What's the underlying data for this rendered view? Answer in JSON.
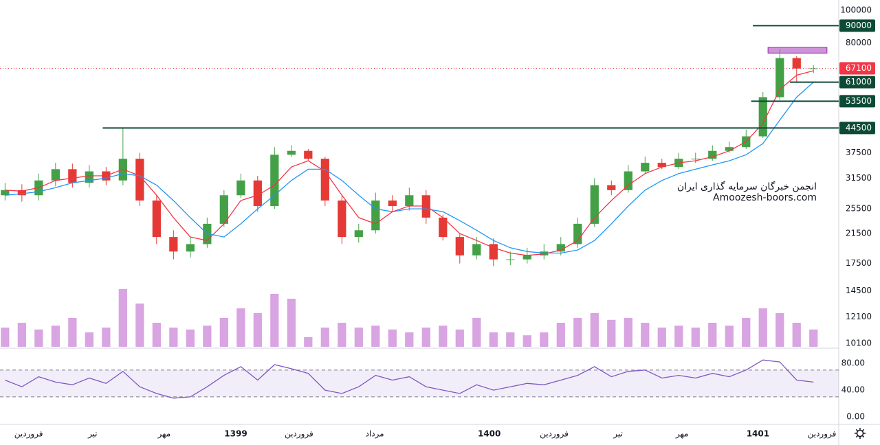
{
  "chart_data": [
    {
      "type": "candlestick",
      "log": true,
      "ylim": [
        9860,
        107400
      ],
      "yticks": [
        100000,
        80000,
        37500,
        31500,
        25500,
        21500,
        17500,
        14500,
        12100,
        10100
      ],
      "xlim": [
        0,
        49.8
      ],
      "xticks": [
        {
          "value": 1.7,
          "label": "فروردین"
        },
        {
          "value": 5.5,
          "label": "تیر"
        },
        {
          "value": 9.75,
          "label": "مهر"
        },
        {
          "value": 14,
          "label": "1399"
        },
        {
          "value": 17.75,
          "label": "فروردین"
        },
        {
          "value": 22.25,
          "label": "مرداد"
        },
        {
          "value": 29.05,
          "label": "1400"
        },
        {
          "value": 32.9,
          "label": "فروردین"
        },
        {
          "value": 36.7,
          "label": "تیر"
        },
        {
          "value": 40.5,
          "label": "مهر"
        },
        {
          "value": 45,
          "label": "1401"
        },
        {
          "value": 48.8,
          "label": "فروردین"
        }
      ],
      "up_color": "#43a047",
      "down_color": "#e53935",
      "open": [
        28000,
        29000,
        28000,
        31000,
        33500,
        30500,
        33000,
        31000,
        36000,
        27000,
        21000,
        19000,
        20000,
        23000,
        28000,
        31000,
        26000,
        37000,
        38000,
        36000,
        27000,
        21000,
        22000,
        27000,
        26000,
        28000,
        24000,
        21000,
        18500,
        20000,
        18000,
        18000,
        18500,
        19000,
        20000,
        23000,
        30000,
        29000,
        33000,
        35000,
        34000,
        36000,
        36000,
        38000,
        39000,
        42000,
        55000,
        72000,
        67000
      ],
      "high": [
        30500,
        30200,
        32500,
        35000,
        34800,
        34500,
        34000,
        44500,
        37500,
        28000,
        22000,
        21000,
        24000,
        29000,
        32500,
        32000,
        39000,
        39500,
        38500,
        36500,
        28000,
        23000,
        28500,
        28000,
        29500,
        29000,
        24500,
        21500,
        21000,
        20800,
        19000,
        19500,
        20000,
        21000,
        24000,
        31500,
        31000,
        34500,
        36500,
        36000,
        37500,
        37500,
        39500,
        40500,
        44000,
        57000,
        76500,
        73000,
        68500
      ],
      "low": [
        27000,
        26800,
        27000,
        29800,
        29500,
        29500,
        30000,
        30000,
        26000,
        20000,
        18000,
        18200,
        19500,
        22500,
        27500,
        25000,
        25500,
        36500,
        35500,
        26000,
        20000,
        20200,
        21500,
        25000,
        25200,
        23000,
        20500,
        17500,
        18000,
        17200,
        17300,
        17500,
        18000,
        18500,
        19500,
        22500,
        28000,
        28500,
        32500,
        33500,
        33500,
        35000,
        35500,
        37500,
        38500,
        41500,
        54000,
        61000,
        65000
      ],
      "close": [
        29000,
        28000,
        31000,
        33500,
        30500,
        33000,
        31000,
        36000,
        27000,
        21000,
        19000,
        20000,
        23000,
        28000,
        31000,
        26000,
        37000,
        38000,
        36000,
        27000,
        21000,
        22000,
        27000,
        26000,
        28000,
        24000,
        21000,
        18500,
        20000,
        18000,
        18000,
        18500,
        19000,
        20000,
        23000,
        30000,
        29000,
        33000,
        35000,
        34000,
        36000,
        36000,
        38000,
        39000,
        42000,
        55000,
        72000,
        67000,
        67100
      ],
      "moving_averages": [
        {
          "color": "#f23645",
          "values": [
            29000,
            28800,
            29500,
            31000,
            31500,
            32000,
            32000,
            33500,
            32000,
            28000,
            24000,
            21000,
            20500,
            23000,
            27000,
            28000,
            30000,
            34000,
            35500,
            33000,
            28000,
            24000,
            23000,
            25000,
            26000,
            26000,
            24000,
            21500,
            20500,
            19500,
            18800,
            18500,
            18700,
            19200,
            20500,
            24000,
            27000,
            30000,
            32500,
            34000,
            35000,
            35500,
            36500,
            38000,
            40500,
            46000,
            58000,
            64000,
            66000
          ]
        },
        {
          "color": "#2196f3",
          "values": [
            28000,
            28300,
            28700,
            29500,
            30500,
            31000,
            31500,
            32500,
            32000,
            30000,
            27000,
            24000,
            21500,
            21000,
            23000,
            25500,
            28000,
            31000,
            33500,
            33500,
            31000,
            28000,
            25500,
            25000,
            25500,
            25500,
            25000,
            23500,
            22000,
            20500,
            19500,
            19000,
            18800,
            18800,
            19200,
            20500,
            23000,
            26000,
            29000,
            31000,
            32500,
            33500,
            34500,
            35500,
            37000,
            40000,
            47000,
            55000,
            61000
          ]
        }
      ],
      "levels": [
        {
          "value": 90000,
          "start": 44.7
        },
        {
          "value": 61000,
          "start": 46.9
        },
        {
          "value": 53500,
          "start": 44.6
        },
        {
          "value": 44500,
          "start": 6.1
        }
      ],
      "level_color": "#0d4a36",
      "last_price": 67100,
      "last_price_color": "#f23645",
      "zone": {
        "x": [
          45.6,
          49.1
        ],
        "y": [
          74500,
          77500
        ],
        "color": "#ce93d8"
      },
      "annotations": [
        "انجمن خبرگان سرمایه گذاری ایران",
        "Amoozesh-boors.com"
      ]
    },
    {
      "type": "bar",
      "ylim": [
        0,
        100
      ],
      "color": "#c77dd4",
      "values": [
        20,
        25,
        18,
        22,
        30,
        15,
        20,
        60,
        45,
        25,
        20,
        18,
        22,
        30,
        40,
        35,
        55,
        50,
        10,
        20,
        25,
        20,
        22,
        18,
        15,
        20,
        22,
        18,
        30,
        15,
        15,
        12,
        15,
        25,
        30,
        35,
        28,
        30,
        25,
        20,
        22,
        20,
        25,
        22,
        30,
        40,
        35,
        25,
        18
      ]
    },
    {
      "type": "line",
      "ylim": [
        -8,
        99.5
      ],
      "color": "#7e57c2",
      "band": [
        30,
        70
      ],
      "yticks": [
        {
          "value": 80,
          "label": "80.00"
        },
        {
          "value": 40,
          "label": "40.00"
        },
        {
          "value": 0,
          "label": "0.00"
        }
      ],
      "values": [
        55,
        45,
        60,
        52,
        48,
        58,
        50,
        68,
        45,
        35,
        28,
        30,
        45,
        62,
        75,
        55,
        78,
        72,
        65,
        40,
        35,
        45,
        62,
        55,
        60,
        45,
        40,
        35,
        48,
        40,
        45,
        50,
        48,
        55,
        62,
        75,
        60,
        68,
        70,
        58,
        62,
        58,
        65,
        60,
        70,
        85,
        82,
        55,
        52
      ]
    }
  ]
}
